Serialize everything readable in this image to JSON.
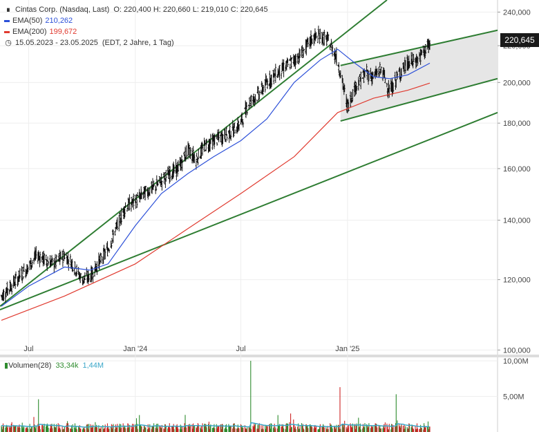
{
  "legend": {
    "title": "Cintas Corp. (Nasdaq, Last)",
    "ohlc": "O: 220,400   H: 220,660   L: 219,010   C: 220,645",
    "ema50_label": "EMA(50)",
    "ema50_value": "210,262",
    "ema200_label": "EMA(200)",
    "ema200_value": "199,672",
    "range": "15.05.2023 - 23.05.2025",
    "range_info": "(EDT, 2 Jahre, 1 Tag)"
  },
  "volume_legend": {
    "label": "Volumen(28)",
    "value1": "33,34k",
    "value2": "1,44M"
  },
  "last_price_tag": "220,645",
  "colors": {
    "ema50": "#2b4fd8",
    "ema200": "#e03a2f",
    "trend": "#2e7d32",
    "candle": "#111111",
    "vol_up": "#2e8b2e",
    "vol_down": "#cc2222",
    "vol_avg": "#3aa6c8",
    "channel_fill": "#e6e6e6"
  },
  "chart_data": [
    {
      "type": "line",
      "title": "Cintas Corp. (Nasdaq, Last)",
      "x_ticks": [
        "Jul",
        "Jan '24",
        "Jul",
        "Jan '25"
      ],
      "x_tick_dates": [
        "2023-07-01",
        "2024-01-01",
        "2024-07-01",
        "2025-01-01"
      ],
      "x_range": [
        "2023-05-15",
        "2025-05-23"
      ],
      "y_ticks": [
        "100,000",
        "120,000",
        "140,000",
        "160,000",
        "180,000",
        "200,000",
        "220,000",
        "240,000"
      ],
      "y_tick_values": [
        100,
        120,
        140,
        160,
        180,
        200,
        220,
        240
      ],
      "ylim": [
        99,
        245
      ],
      "y_scale": "log",
      "series": [
        {
          "name": "Cintas Corp. (Nasdaq, Last)",
          "x": [
            "2023-05-15",
            "2023-06-01",
            "2023-06-15",
            "2023-07-01",
            "2023-07-15",
            "2023-08-01",
            "2023-08-15",
            "2023-09-01",
            "2023-09-15",
            "2023-10-01",
            "2023-10-15",
            "2023-11-01",
            "2023-11-15",
            "2023-12-01",
            "2023-12-15",
            "2024-01-01",
            "2024-01-15",
            "2024-02-01",
            "2024-02-15",
            "2024-03-01",
            "2024-03-15",
            "2024-04-01",
            "2024-04-15",
            "2024-05-01",
            "2024-05-15",
            "2024-06-01",
            "2024-06-15",
            "2024-07-01",
            "2024-07-15",
            "2024-08-01",
            "2024-08-15",
            "2024-09-01",
            "2024-09-15",
            "2024-10-01",
            "2024-10-15",
            "2024-11-01",
            "2024-11-15",
            "2024-12-01",
            "2024-12-15",
            "2025-01-01",
            "2025-01-15",
            "2025-02-01",
            "2025-02-15",
            "2025-03-01",
            "2025-03-15",
            "2025-04-01",
            "2025-04-15",
            "2025-05-01",
            "2025-05-23"
          ],
          "values": [
            115,
            118,
            121,
            124,
            128,
            126,
            125,
            128,
            125,
            120,
            121,
            126,
            130,
            138,
            145,
            147,
            150,
            152,
            155,
            158,
            160,
            168,
            164,
            170,
            172,
            174,
            176,
            180,
            190,
            194,
            200,
            205,
            208,
            212,
            216,
            224,
            226,
            222,
            212,
            188,
            198,
            205,
            203,
            207,
            195,
            205,
            210,
            212,
            220.645
          ]
        },
        {
          "name": "EMA(50)",
          "x": [
            "2023-05-15",
            "2023-07-01",
            "2023-09-01",
            "2023-10-15",
            "2023-11-15",
            "2024-01-01",
            "2024-02-15",
            "2024-04-01",
            "2024-05-15",
            "2024-07-01",
            "2024-08-15",
            "2024-10-01",
            "2024-11-15",
            "2024-12-15",
            "2025-01-15",
            "2025-02-15",
            "2025-03-15",
            "2025-04-15",
            "2025-05-23"
          ],
          "values": [
            112,
            118,
            124,
            123,
            125,
            138,
            150,
            158,
            165,
            172,
            182,
            200,
            212,
            218,
            210,
            203,
            202,
            204,
            210.262
          ]
        },
        {
          "name": "EMA(200)",
          "x": [
            "2023-05-15",
            "2023-09-01",
            "2024-01-01",
            "2024-04-01",
            "2024-07-01",
            "2024-10-01",
            "2024-12-15",
            "2025-02-15",
            "2025-04-15",
            "2025-05-23"
          ],
          "values": [
            108,
            115,
            125,
            137,
            150,
            165,
            185,
            192,
            196,
            199.672
          ]
        }
      ]
    },
    {
      "type": "bar",
      "title": "Volumen(28)",
      "y_ticks": [
        "5,00M",
        "10,00M"
      ],
      "y_tick_values": [
        5,
        10
      ],
      "ylim": [
        0,
        10
      ],
      "unit": "M",
      "highlights": [
        {
          "x": "2023-07-18",
          "value": 4.6
        },
        {
          "x": "2024-03-27",
          "value": 2.4
        },
        {
          "x": "2024-07-18",
          "value": 10.0
        },
        {
          "x": "2024-09-25",
          "value": 2.6
        },
        {
          "x": "2024-12-19",
          "value": 6.3
        },
        {
          "x": "2025-03-26",
          "value": 5.3
        }
      ]
    }
  ]
}
